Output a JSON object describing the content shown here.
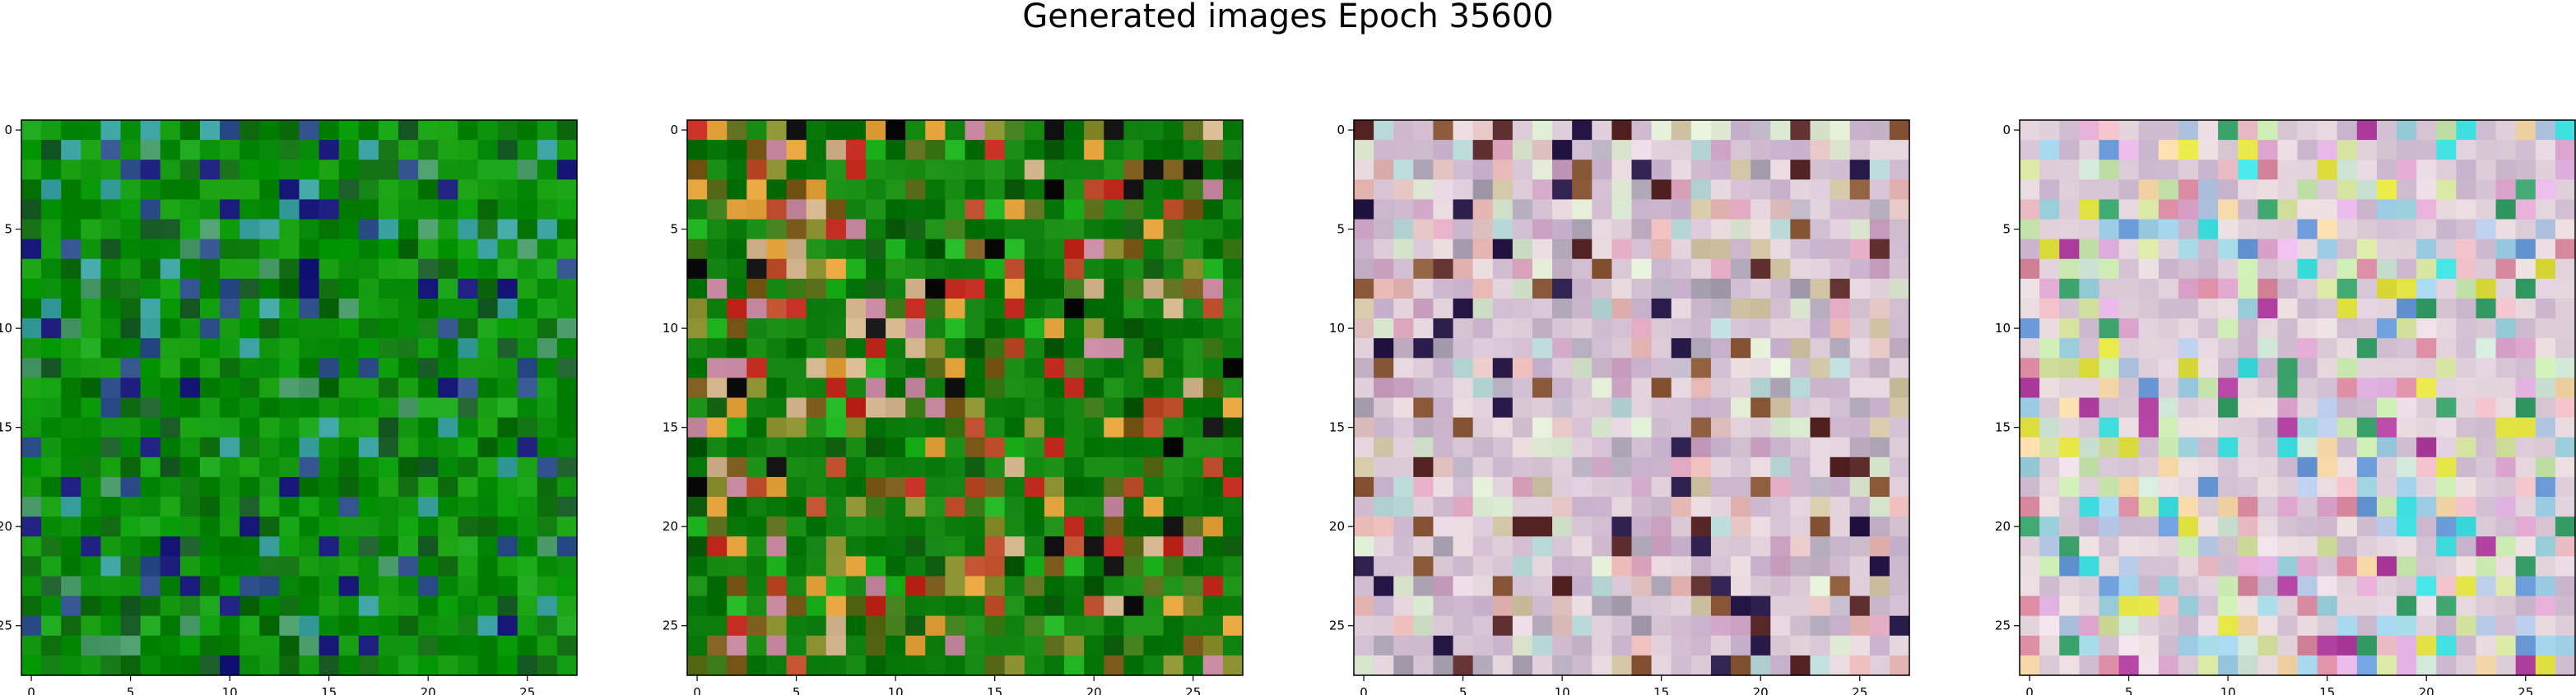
{
  "chart_data": {
    "type": "heatmap",
    "title": "Generated images Epoch 35600",
    "panels": [
      {
        "name": "",
        "image_grid": "28x28 RGB pixels",
        "dominant_color": "#0a8f0a",
        "palette": [
          "#0a8f0a",
          "#079a07",
          "#1aa51a",
          "#0c7a0c",
          "#0e6e0e",
          "#1b5e2a",
          "#2e4f8a",
          "#1a1a7a",
          "#3aa0a0",
          "#4a9a6a",
          "#0f6a0f",
          "#10a010"
        ],
        "xlim": [
          -0.5,
          27.5
        ],
        "ylim": [
          27.5,
          -0.5
        ]
      },
      {
        "name": "",
        "image_grid": "28x28 RGB pixels",
        "dominant_color": "#0d7e0d",
        "palette": [
          "#0d7e0d",
          "#3f7a18",
          "#5a6c1a",
          "#0b5a0b",
          "#1fb21f",
          "#7a5a1a",
          "#c1281e",
          "#e2a03a",
          "#101010",
          "#b84a2a",
          "#8a8f30",
          "#d2b48c",
          "#c88aa0"
        ],
        "xlim": [
          -0.5,
          27.5
        ],
        "ylim": [
          27.5,
          -0.5
        ]
      },
      {
        "name": "",
        "image_grid": "28x28 RGB pixels",
        "dominant_color": "#d9c6d6",
        "palette": [
          "#d9c6d6",
          "#e6d3e0",
          "#c8b4c8",
          "#d7e6cf",
          "#b8d8d8",
          "#e3c2c2",
          "#c9a0c0",
          "#dfe9d3",
          "#cfc3a3",
          "#a8a0b0",
          "#e7b7b5",
          "#bdb4c5",
          "#5a2a2a",
          "#8a5a3a",
          "#2a1a4a",
          "#e0a8c0"
        ],
        "xlim": [
          -0.5,
          27.5
        ],
        "ylim": [
          27.5,
          -0.5
        ]
      },
      {
        "name": "",
        "image_grid": "28x28 RGB pixels",
        "dominant_color": "#dccbd8",
        "palette": [
          "#dccbd8",
          "#e9d9e3",
          "#cfe5d5",
          "#b5c9e6",
          "#e0a7d0",
          "#d6e3a0",
          "#f0c0c8",
          "#9fd3e0",
          "#e8b8e8",
          "#c8e8b0",
          "#f5d7a8",
          "#d98aa0",
          "#6a9bd8",
          "#3aa06a",
          "#e0e040",
          "#a0d0e8",
          "#b040a0",
          "#40e0e0"
        ],
        "xlim": [
          -0.5,
          27.5
        ],
        "ylim": [
          27.5,
          -0.5
        ]
      }
    ],
    "xticks": [
      0,
      5,
      10,
      15,
      20,
      25
    ],
    "yticks": [
      0,
      5,
      10,
      15,
      20,
      25
    ],
    "xlabel": "",
    "ylabel": "",
    "grid": false
  }
}
